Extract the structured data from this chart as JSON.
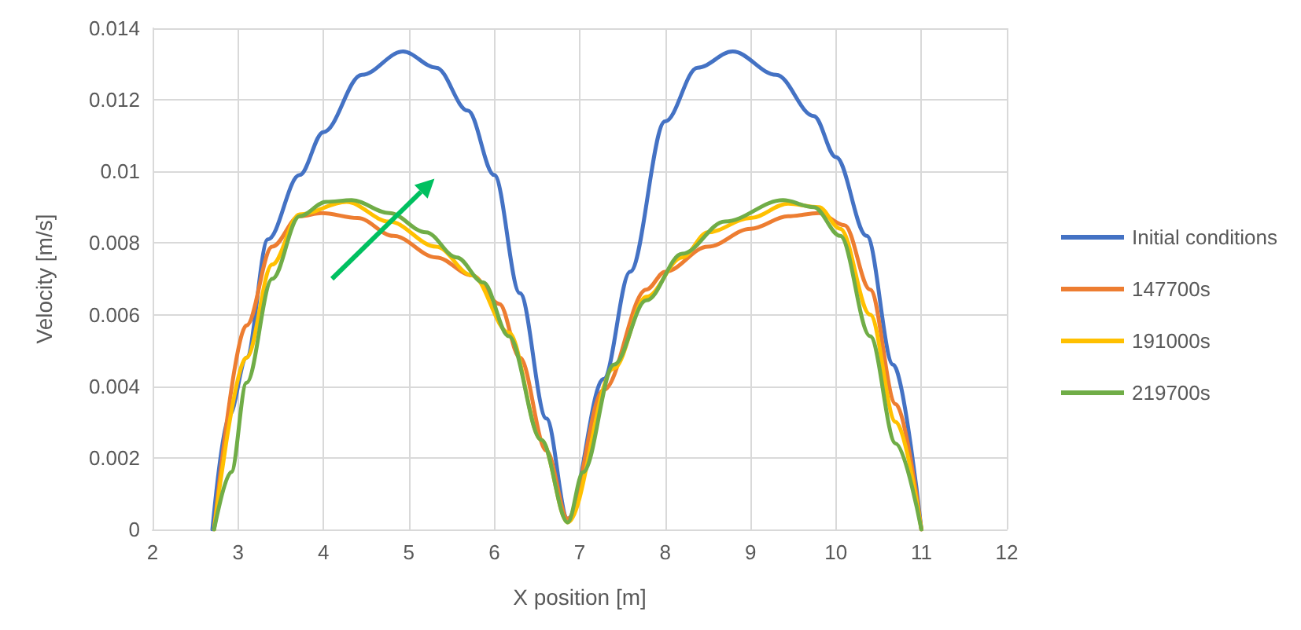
{
  "chart_data": {
    "type": "line",
    "xlabel": "X position [m]",
    "ylabel": "Velocity [m/s]",
    "xlim": [
      2,
      12
    ],
    "xticks": [
      2,
      3,
      4,
      5,
      6,
      7,
      8,
      9,
      10,
      11,
      12
    ],
    "ylim": [
      0,
      0.014
    ],
    "yticks": [
      0,
      0.002,
      0.004,
      0.006,
      0.008,
      0.01,
      0.012,
      0.014
    ],
    "grid": true,
    "legend": "right",
    "marker": "none",
    "line_style": "solid",
    "series": [
      {
        "name": "Initial conditions",
        "color": "#4472c4",
        "x": [
          2.7,
          2.9,
          3.1,
          3.35,
          3.72,
          4.0,
          4.45,
          4.93,
          5.32,
          5.69,
          6.0,
          6.3,
          6.61,
          6.86,
          7.28,
          7.59,
          8.0,
          8.38,
          8.79,
          9.3,
          9.74,
          10.0,
          10.36,
          10.67,
          11.0
        ],
        "values": [
          0,
          0.0032,
          0.0048,
          0.0081,
          0.0099,
          0.0111,
          0.0127,
          0.01335,
          0.0129,
          0.0117,
          0.0099,
          0.0066,
          0.0031,
          0.0003,
          0.0042,
          0.0072,
          0.0114,
          0.0129,
          0.01335,
          0.0127,
          0.01155,
          0.0104,
          0.0082,
          0.0046,
          0
        ]
      },
      {
        "name": "147700s",
        "color": "#ed7d31",
        "x": [
          2.72,
          3.1,
          3.4,
          3.72,
          3.98,
          4.4,
          4.82,
          5.32,
          5.74,
          6.06,
          6.3,
          6.61,
          6.86,
          7.28,
          7.78,
          8.0,
          8.5,
          9.0,
          9.44,
          9.8,
          10.1,
          10.4,
          10.7,
          11.0
        ],
        "values": [
          0,
          0.0057,
          0.0079,
          0.00875,
          0.00884,
          0.0087,
          0.0082,
          0.0076,
          0.0071,
          0.0063,
          0.0048,
          0.0022,
          0.0003,
          0.0039,
          0.0067,
          0.0072,
          0.0079,
          0.0084,
          0.00875,
          0.00884,
          0.0085,
          0.0067,
          0.0035,
          0
        ]
      },
      {
        "name": "191000s",
        "color": "#ffc000",
        "x": [
          2.72,
          3.1,
          3.4,
          3.72,
          4.27,
          4.77,
          5.32,
          5.74,
          6.17,
          6.55,
          6.86,
          7.4,
          7.78,
          8.2,
          8.5,
          9.0,
          9.44,
          9.8,
          10.05,
          10.4,
          10.7,
          11.0
        ],
        "values": [
          0,
          0.0048,
          0.0074,
          0.0088,
          0.00915,
          0.0086,
          0.0079,
          0.0071,
          0.0055,
          0.0025,
          0.0002,
          0.0045,
          0.0065,
          0.0076,
          0.0083,
          0.0087,
          0.0091,
          0.009,
          0.0084,
          0.006,
          0.003,
          0
        ]
      },
      {
        "name": "219700s",
        "color": "#70ad47",
        "x": [
          2.72,
          2.92,
          3.1,
          3.4,
          3.72,
          4.03,
          4.33,
          4.77,
          5.2,
          5.56,
          5.87,
          6.17,
          6.55,
          6.86,
          7.04,
          7.4,
          7.78,
          8.2,
          8.7,
          9.38,
          9.74,
          10.05,
          10.4,
          10.7,
          11.0
        ],
        "values": [
          0,
          0.0016,
          0.0041,
          0.007,
          0.00875,
          0.00915,
          0.0092,
          0.00884,
          0.0083,
          0.0076,
          0.0069,
          0.0054,
          0.0025,
          0.0002,
          0.0016,
          0.0046,
          0.0064,
          0.0077,
          0.0086,
          0.0092,
          0.009,
          0.0082,
          0.0054,
          0.0024,
          0
        ]
      }
    ]
  }
}
